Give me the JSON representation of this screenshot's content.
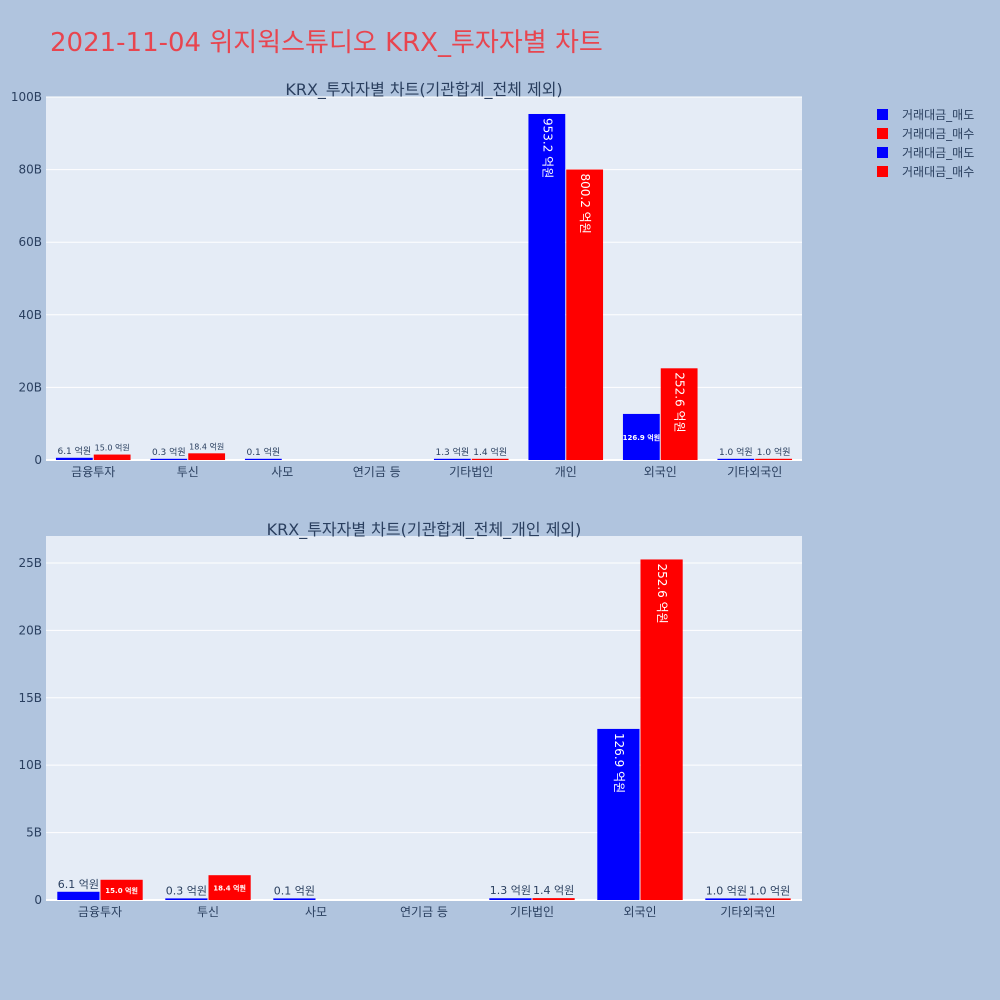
{
  "title": "2021-11-04 위지윅스튜디오 KRX_투자자별 차트",
  "colors": {
    "sell": "#0000ff",
    "buy": "#ff0000",
    "plot_bg": "#e5ecf6",
    "page_bg": "#b0c4de",
    "title": "#e8454f"
  },
  "legend": {
    "placement": "top-right",
    "entries": [
      {
        "name": "거래대금_매도",
        "color": "#0000ff"
      },
      {
        "name": "거래대금_매수",
        "color": "#ff0000"
      },
      {
        "name": "거래대금_매도",
        "color": "#0000ff"
      },
      {
        "name": "거래대금_매수",
        "color": "#ff0000"
      }
    ]
  },
  "chart_data": [
    {
      "type": "bar",
      "title": "KRX_투자자별 차트(기관합계_전체 제외)",
      "categories": [
        "금융투자",
        "투신",
        "사모",
        "연기금 등",
        "기타법인",
        "개인",
        "외국인",
        "기타외국인"
      ],
      "ylim": [
        0,
        100
      ],
      "yticks": [
        0,
        20,
        40,
        60,
        80,
        100
      ],
      "ytick_labels": [
        "0",
        "20B",
        "40B",
        "60B",
        "80B",
        "100B"
      ],
      "grid": true,
      "series": [
        {
          "name": "거래대금_매도",
          "color": "#0000ff",
          "values": [
            0.61,
            0.03,
            0.01,
            0,
            0.13,
            95.32,
            12.69,
            0.1
          ],
          "labels": [
            "6.1 억원",
            "0.3 억원",
            "0.1 억원",
            "",
            "1.3 억원",
            "953.2 억원",
            "126.9 억원",
            "1.0 억원"
          ]
        },
        {
          "name": "거래대금_매수",
          "color": "#ff0000",
          "values": [
            1.5,
            1.84,
            0,
            0,
            0.14,
            80.02,
            25.26,
            0.1
          ],
          "labels": [
            "15.0 억원",
            "18.4 억원",
            "",
            "",
            "1.4 억원",
            "800.2 억원",
            "252.6 억원",
            "1.0 억원"
          ]
        }
      ]
    },
    {
      "type": "bar",
      "title": "KRX_투자자별 차트(기관합계_전체_개인 제외)",
      "categories": [
        "금융투자",
        "투신",
        "사모",
        "연기금 등",
        "기타법인",
        "외국인",
        "기타외국인"
      ],
      "ylim": [
        0,
        27
      ],
      "yticks": [
        0,
        5,
        10,
        15,
        20,
        25
      ],
      "ytick_labels": [
        "0",
        "5B",
        "10B",
        "15B",
        "20B",
        "25B"
      ],
      "grid": true,
      "series": [
        {
          "name": "거래대금_매도",
          "color": "#0000ff",
          "values": [
            0.61,
            0.03,
            0.01,
            0,
            0.13,
            12.69,
            0.1
          ],
          "labels": [
            "6.1 억원",
            "0.3 억원",
            "0.1 억원",
            "",
            "1.3 억원",
            "126.9 억원",
            "1.0 억원"
          ]
        },
        {
          "name": "거래대금_매수",
          "color": "#ff0000",
          "values": [
            1.5,
            1.84,
            0,
            0,
            0.14,
            25.26,
            0.1
          ],
          "labels": [
            "15.0 억원",
            "18.4 억원",
            "",
            "",
            "1.4 억원",
            "252.6 억원",
            "1.0 억원"
          ]
        }
      ]
    }
  ]
}
